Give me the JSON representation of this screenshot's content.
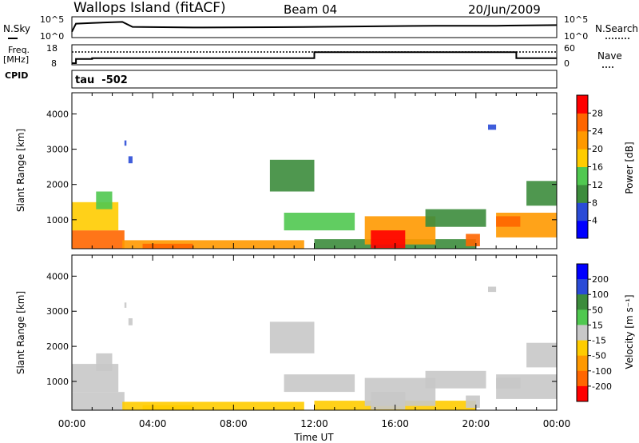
{
  "header": {
    "station": "Wallops Island (fitACF)",
    "beam": "Beam 04",
    "date": "20/Jun/2009"
  },
  "noise_panel": {
    "left_label": "N.Sky",
    "right_label": "N.Search",
    "left_ticks": [
      "10^5",
      "10^0"
    ],
    "right_ticks": [
      "10^5",
      "10^0"
    ]
  },
  "freq_panel": {
    "left_label_line1": "Freq.",
    "left_label_line2": "[MHz]",
    "left_ticks": [
      "18",
      "8"
    ],
    "right_ticks": [
      "60",
      "0"
    ],
    "right_label": "Nave",
    "cpid_label": "CPID"
  },
  "cpid_panel": {
    "text": "tau  -502"
  },
  "power_panel": {
    "ylabel": "Slant Range [km]",
    "yticks": [
      "4000",
      "3000",
      "2000",
      "1000"
    ],
    "colorbar_label": "Power [dB]",
    "colorbar_ticks": [
      "28",
      "24",
      "20",
      "16",
      "12",
      "8",
      "4"
    ],
    "colors": [
      "#0000ff",
      "#2a4bd7",
      "#3c8c3c",
      "#50c850",
      "#ffcc00",
      "#ff9900",
      "#ff6600",
      "#ff0000"
    ]
  },
  "velocity_panel": {
    "ylabel": "Slant Range [km]",
    "yticks": [
      "4000",
      "3000",
      "2000",
      "1000"
    ],
    "colorbar_label": "Velocity [m s⁻¹]",
    "colorbar_ticks": [
      "200",
      "100",
      "50",
      "15",
      "-15",
      "-50",
      "-100",
      "-200"
    ],
    "colors": [
      "#0000ff",
      "#2a4bd7",
      "#3c8c3c",
      "#50c850",
      "#c8c8c8",
      "#ffcc00",
      "#ff9900",
      "#ff6600",
      "#ff0000"
    ]
  },
  "xaxis": {
    "label": "Time UT",
    "ticks": [
      "00:00",
      "04:00",
      "08:00",
      "12:00",
      "16:00",
      "20:00",
      "00:00"
    ]
  },
  "chart_data": {
    "type": "heatmap",
    "title": "Wallops Island (fitACF)",
    "x_range_hours": [
      0,
      24
    ],
    "y_range_km": [
      180,
      4600
    ],
    "power_scale_db": [
      0,
      32
    ],
    "velocity_scale": [
      -250,
      250
    ],
    "noise_sky": [
      [
        0.0,
        1.2
      ],
      [
        0.2,
        3.5
      ],
      [
        1.0,
        3.7
      ],
      [
        2.5,
        4.0
      ],
      [
        3.0,
        2.6
      ],
      [
        6.0,
        2.4
      ],
      [
        10.0,
        2.5
      ],
      [
        12.0,
        2.6
      ],
      [
        14.0,
        2.7
      ],
      [
        18.0,
        2.9
      ],
      [
        21.0,
        2.9
      ],
      [
        24.0,
        3.1
      ]
    ],
    "freq_mhz": [
      [
        0.0,
        8.0
      ],
      [
        0.2,
        10.5
      ],
      [
        1.0,
        11.0
      ],
      [
        11.9,
        11.0
      ],
      [
        12.0,
        14.5
      ],
      [
        21.9,
        14.5
      ],
      [
        22.0,
        11.0
      ],
      [
        24.0,
        11.0
      ]
    ],
    "nave": [
      [
        0.0,
        40
      ],
      [
        24.0,
        40
      ]
    ],
    "echo_regions": [
      {
        "t0": 0.0,
        "t1": 2.6,
        "r0": 180,
        "r1": 700,
        "power": 24,
        "velocity": 0
      },
      {
        "t0": 0.0,
        "t1": 2.3,
        "r0": 700,
        "r1": 1500,
        "power": 18,
        "velocity": 0
      },
      {
        "t0": 1.2,
        "t1": 2.0,
        "r0": 1300,
        "r1": 1800,
        "power": 14,
        "velocity": 0
      },
      {
        "t0": 2.5,
        "t1": 11.5,
        "r0": 180,
        "r1": 420,
        "power": 20,
        "velocity": -20
      },
      {
        "t0": 3.5,
        "t1": 6.0,
        "r0": 180,
        "r1": 320,
        "power": 26,
        "velocity": -30
      },
      {
        "t0": 9.8,
        "t1": 12.0,
        "r0": 1800,
        "r1": 2700,
        "power": 10,
        "velocity": 0
      },
      {
        "t0": 10.5,
        "t1": 14.0,
        "r0": 700,
        "r1": 1200,
        "power": 12,
        "velocity": 0
      },
      {
        "t0": 12.0,
        "t1": 20.0,
        "r0": 180,
        "r1": 450,
        "power": 8,
        "velocity": -20
      },
      {
        "t0": 14.5,
        "t1": 18.0,
        "r0": 300,
        "r1": 1100,
        "power": 22,
        "velocity": 0
      },
      {
        "t0": 14.8,
        "t1": 16.5,
        "r0": 200,
        "r1": 700,
        "power": 28,
        "velocity": 0
      },
      {
        "t0": 17.5,
        "t1": 20.5,
        "r0": 800,
        "r1": 1300,
        "power": 10,
        "velocity": 0
      },
      {
        "t0": 19.5,
        "t1": 20.2,
        "r0": 250,
        "r1": 600,
        "power": 24,
        "velocity": 0
      },
      {
        "t0": 21.0,
        "t1": 24.0,
        "r0": 500,
        "r1": 1200,
        "power": 20,
        "velocity": 0
      },
      {
        "t0": 21.0,
        "t1": 22.2,
        "r0": 800,
        "r1": 1100,
        "power": 26,
        "velocity": 0
      },
      {
        "t0": 22.5,
        "t1": 24.0,
        "r0": 1400,
        "r1": 2100,
        "power": 10,
        "velocity": 0
      },
      {
        "t0": 2.8,
        "t1": 3.0,
        "r0": 2600,
        "r1": 2800,
        "power": 6,
        "velocity": 0
      },
      {
        "t0": 2.6,
        "t1": 2.7,
        "r0": 3100,
        "r1": 3250,
        "power": 4,
        "velocity": 0
      },
      {
        "t0": 20.6,
        "t1": 21.0,
        "r0": 3550,
        "r1": 3700,
        "power": 4,
        "velocity": 0
      }
    ]
  }
}
